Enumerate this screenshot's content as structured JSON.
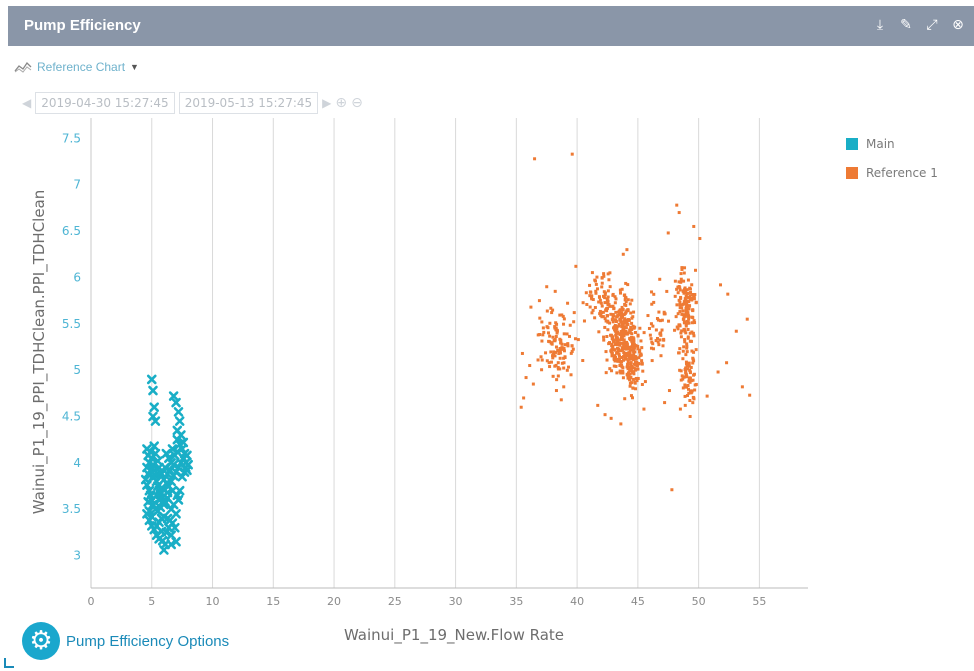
{
  "window": {
    "title": "Pump Efficiency",
    "tools": [
      "download-icon",
      "edit-icon",
      "expand-icon",
      "close-icon"
    ]
  },
  "toolbar": {
    "reference_label": "Reference Chart",
    "start_date": "2019-04-30 15:27:45",
    "end_date": "2019-05-13 15:27:45"
  },
  "options": {
    "label": "Pump Efficiency Options"
  },
  "colors": {
    "main": "#19aec6",
    "reference": "#ee7a34",
    "grid": "#d9d9d9",
    "tick": "#4eb5d4",
    "axis_text": "#6d6d6d"
  },
  "chart_data": {
    "type": "scatter",
    "xlabel": "Wainui_P1_19_New.Flow Rate",
    "ylabel": "Wainui_P1_19_PPI_TDHClean.PPI_TDHClean",
    "xlim": [
      0,
      59
    ],
    "ylim": [
      2.65,
      7.72
    ],
    "x_ticks": [
      0,
      5,
      10,
      15,
      20,
      25,
      30,
      35,
      40,
      45,
      50,
      55
    ],
    "y_ticks": [
      3,
      3.5,
      4,
      4.5,
      5,
      5.5,
      6,
      6.5,
      7,
      7.5
    ],
    "grid": "vertical",
    "legend_position": "right",
    "series": [
      {
        "name": "Main",
        "marker": "x",
        "points": [
          [
            5.0,
            4.9
          ],
          [
            5.1,
            4.78
          ],
          [
            5.2,
            4.6
          ],
          [
            5.1,
            4.5
          ],
          [
            5.3,
            4.45
          ],
          [
            6.8,
            4.72
          ],
          [
            7.0,
            4.65
          ],
          [
            7.2,
            4.55
          ],
          [
            7.3,
            4.45
          ],
          [
            7.1,
            4.35
          ],
          [
            7.4,
            4.3
          ],
          [
            4.6,
            4.15
          ],
          [
            4.7,
            4.08
          ],
          [
            4.8,
            4.0
          ],
          [
            4.6,
            3.95
          ],
          [
            4.7,
            3.88
          ],
          [
            4.5,
            3.82
          ],
          [
            4.6,
            3.76
          ],
          [
            4.8,
            3.7
          ],
          [
            4.9,
            3.65
          ],
          [
            5.0,
            3.6
          ],
          [
            5.1,
            3.55
          ],
          [
            5.3,
            3.5
          ],
          [
            4.9,
            4.12
          ],
          [
            5.0,
            4.05
          ],
          [
            5.1,
            3.98
          ],
          [
            5.2,
            3.92
          ],
          [
            5.3,
            3.86
          ],
          [
            5.4,
            3.8
          ],
          [
            5.5,
            3.75
          ],
          [
            5.6,
            3.7
          ],
          [
            5.7,
            3.66
          ],
          [
            5.8,
            3.62
          ],
          [
            5.9,
            3.58
          ],
          [
            6.0,
            3.55
          ],
          [
            5.2,
            4.18
          ],
          [
            5.3,
            4.1
          ],
          [
            5.5,
            4.02
          ],
          [
            5.6,
            3.95
          ],
          [
            5.8,
            3.88
          ],
          [
            6.0,
            3.82
          ],
          [
            6.2,
            3.78
          ],
          [
            6.4,
            3.75
          ],
          [
            6.6,
            3.8
          ],
          [
            6.8,
            3.86
          ],
          [
            7.0,
            3.9
          ],
          [
            7.2,
            3.95
          ],
          [
            7.4,
            4.0
          ],
          [
            7.6,
            4.05
          ],
          [
            7.8,
            4.0
          ],
          [
            7.7,
            4.1
          ],
          [
            7.5,
            4.15
          ],
          [
            7.3,
            4.2
          ],
          [
            7.1,
            4.25
          ],
          [
            7.6,
            4.22
          ],
          [
            7.9,
            4.08
          ],
          [
            8.0,
            3.98
          ],
          [
            7.9,
            3.92
          ],
          [
            7.7,
            3.9
          ],
          [
            6.2,
            4.1
          ],
          [
            6.4,
            4.05
          ],
          [
            6.6,
            4.0
          ],
          [
            6.8,
            3.98
          ],
          [
            6.5,
            3.92
          ],
          [
            6.3,
            3.88
          ],
          [
            6.9,
            4.08
          ],
          [
            7.1,
            4.12
          ],
          [
            6.7,
            4.15
          ],
          [
            4.8,
            3.38
          ],
          [
            5.0,
            3.32
          ],
          [
            5.2,
            3.28
          ],
          [
            5.4,
            3.32
          ],
          [
            5.6,
            3.36
          ],
          [
            5.8,
            3.4
          ],
          [
            6.0,
            3.42
          ],
          [
            6.3,
            3.4
          ],
          [
            6.5,
            3.38
          ],
          [
            6.7,
            3.35
          ],
          [
            6.2,
            3.25
          ],
          [
            6.6,
            3.22
          ],
          [
            5.9,
            3.16
          ],
          [
            6.1,
            3.12
          ],
          [
            6.0,
            3.06
          ],
          [
            6.6,
            3.12
          ],
          [
            7.0,
            3.15
          ],
          [
            5.5,
            3.48
          ],
          [
            5.7,
            3.52
          ],
          [
            6.1,
            3.58
          ],
          [
            6.3,
            3.62
          ],
          [
            6.6,
            3.5
          ],
          [
            6.8,
            3.55
          ],
          [
            7.1,
            3.65
          ],
          [
            7.3,
            3.7
          ],
          [
            4.6,
            3.45
          ],
          [
            4.8,
            3.48
          ],
          [
            5.0,
            3.42
          ],
          [
            5.4,
            3.22
          ],
          [
            5.6,
            3.18
          ],
          [
            5.8,
            3.26
          ],
          [
            6.4,
            3.3
          ],
          [
            6.9,
            3.3
          ],
          [
            7.0,
            3.45
          ],
          [
            7.2,
            3.6
          ],
          [
            4.9,
            3.92
          ],
          [
            5.1,
            3.85
          ],
          [
            5.7,
            3.9
          ],
          [
            6.1,
            3.95
          ],
          [
            5.9,
            3.72
          ],
          [
            6.3,
            3.68
          ],
          [
            4.7,
            3.58
          ],
          [
            5.4,
            3.65
          ],
          [
            5.6,
            3.6
          ],
          [
            6.7,
            3.7
          ],
          [
            7.5,
            3.85
          ],
          [
            7.8,
            3.95
          ]
        ]
      },
      {
        "name": "Reference 1",
        "marker": "square",
        "points": [
          [
            36.5,
            7.28
          ],
          [
            39.6,
            7.33
          ],
          [
            48.2,
            6.78
          ],
          [
            48.4,
            6.7
          ],
          [
            49.6,
            6.55
          ],
          [
            50.1,
            6.42
          ],
          [
            47.5,
            6.48
          ],
          [
            44.1,
            6.3
          ],
          [
            43.8,
            6.25
          ],
          [
            39.9,
            6.12
          ],
          [
            42.7,
            6.05
          ],
          [
            51.8,
            5.92
          ],
          [
            52.4,
            5.82
          ],
          [
            46.8,
            5.98
          ],
          [
            37.5,
            5.9
          ],
          [
            38.2,
            5.85
          ],
          [
            36.9,
            5.75
          ],
          [
            36.2,
            5.68
          ],
          [
            37.1,
            5.52
          ],
          [
            36.8,
            5.38
          ],
          [
            35.5,
            5.18
          ],
          [
            36.1,
            5.05
          ],
          [
            35.8,
            4.92
          ],
          [
            36.4,
            4.85
          ],
          [
            35.6,
            4.7
          ],
          [
            35.4,
            4.6
          ],
          [
            38.3,
            4.78
          ],
          [
            38.9,
            4.82
          ],
          [
            39.5,
            4.95
          ],
          [
            38.7,
            4.68
          ],
          [
            54.0,
            5.55
          ],
          [
            53.1,
            5.42
          ],
          [
            53.6,
            4.82
          ],
          [
            54.2,
            4.73
          ],
          [
            52.3,
            5.08
          ],
          [
            51.6,
            4.98
          ],
          [
            47.8,
            3.71
          ],
          [
            43.6,
            4.42
          ],
          [
            42.3,
            4.52
          ],
          [
            42.8,
            4.48
          ],
          [
            41.7,
            4.62
          ],
          [
            45.5,
            4.58
          ],
          [
            47.2,
            4.65
          ],
          [
            48.5,
            4.58
          ],
          [
            49.3,
            4.5
          ],
          [
            48.9,
            4.62
          ],
          [
            47.6,
            4.78
          ],
          [
            50.7,
            4.72
          ]
        ]
      }
    ]
  }
}
